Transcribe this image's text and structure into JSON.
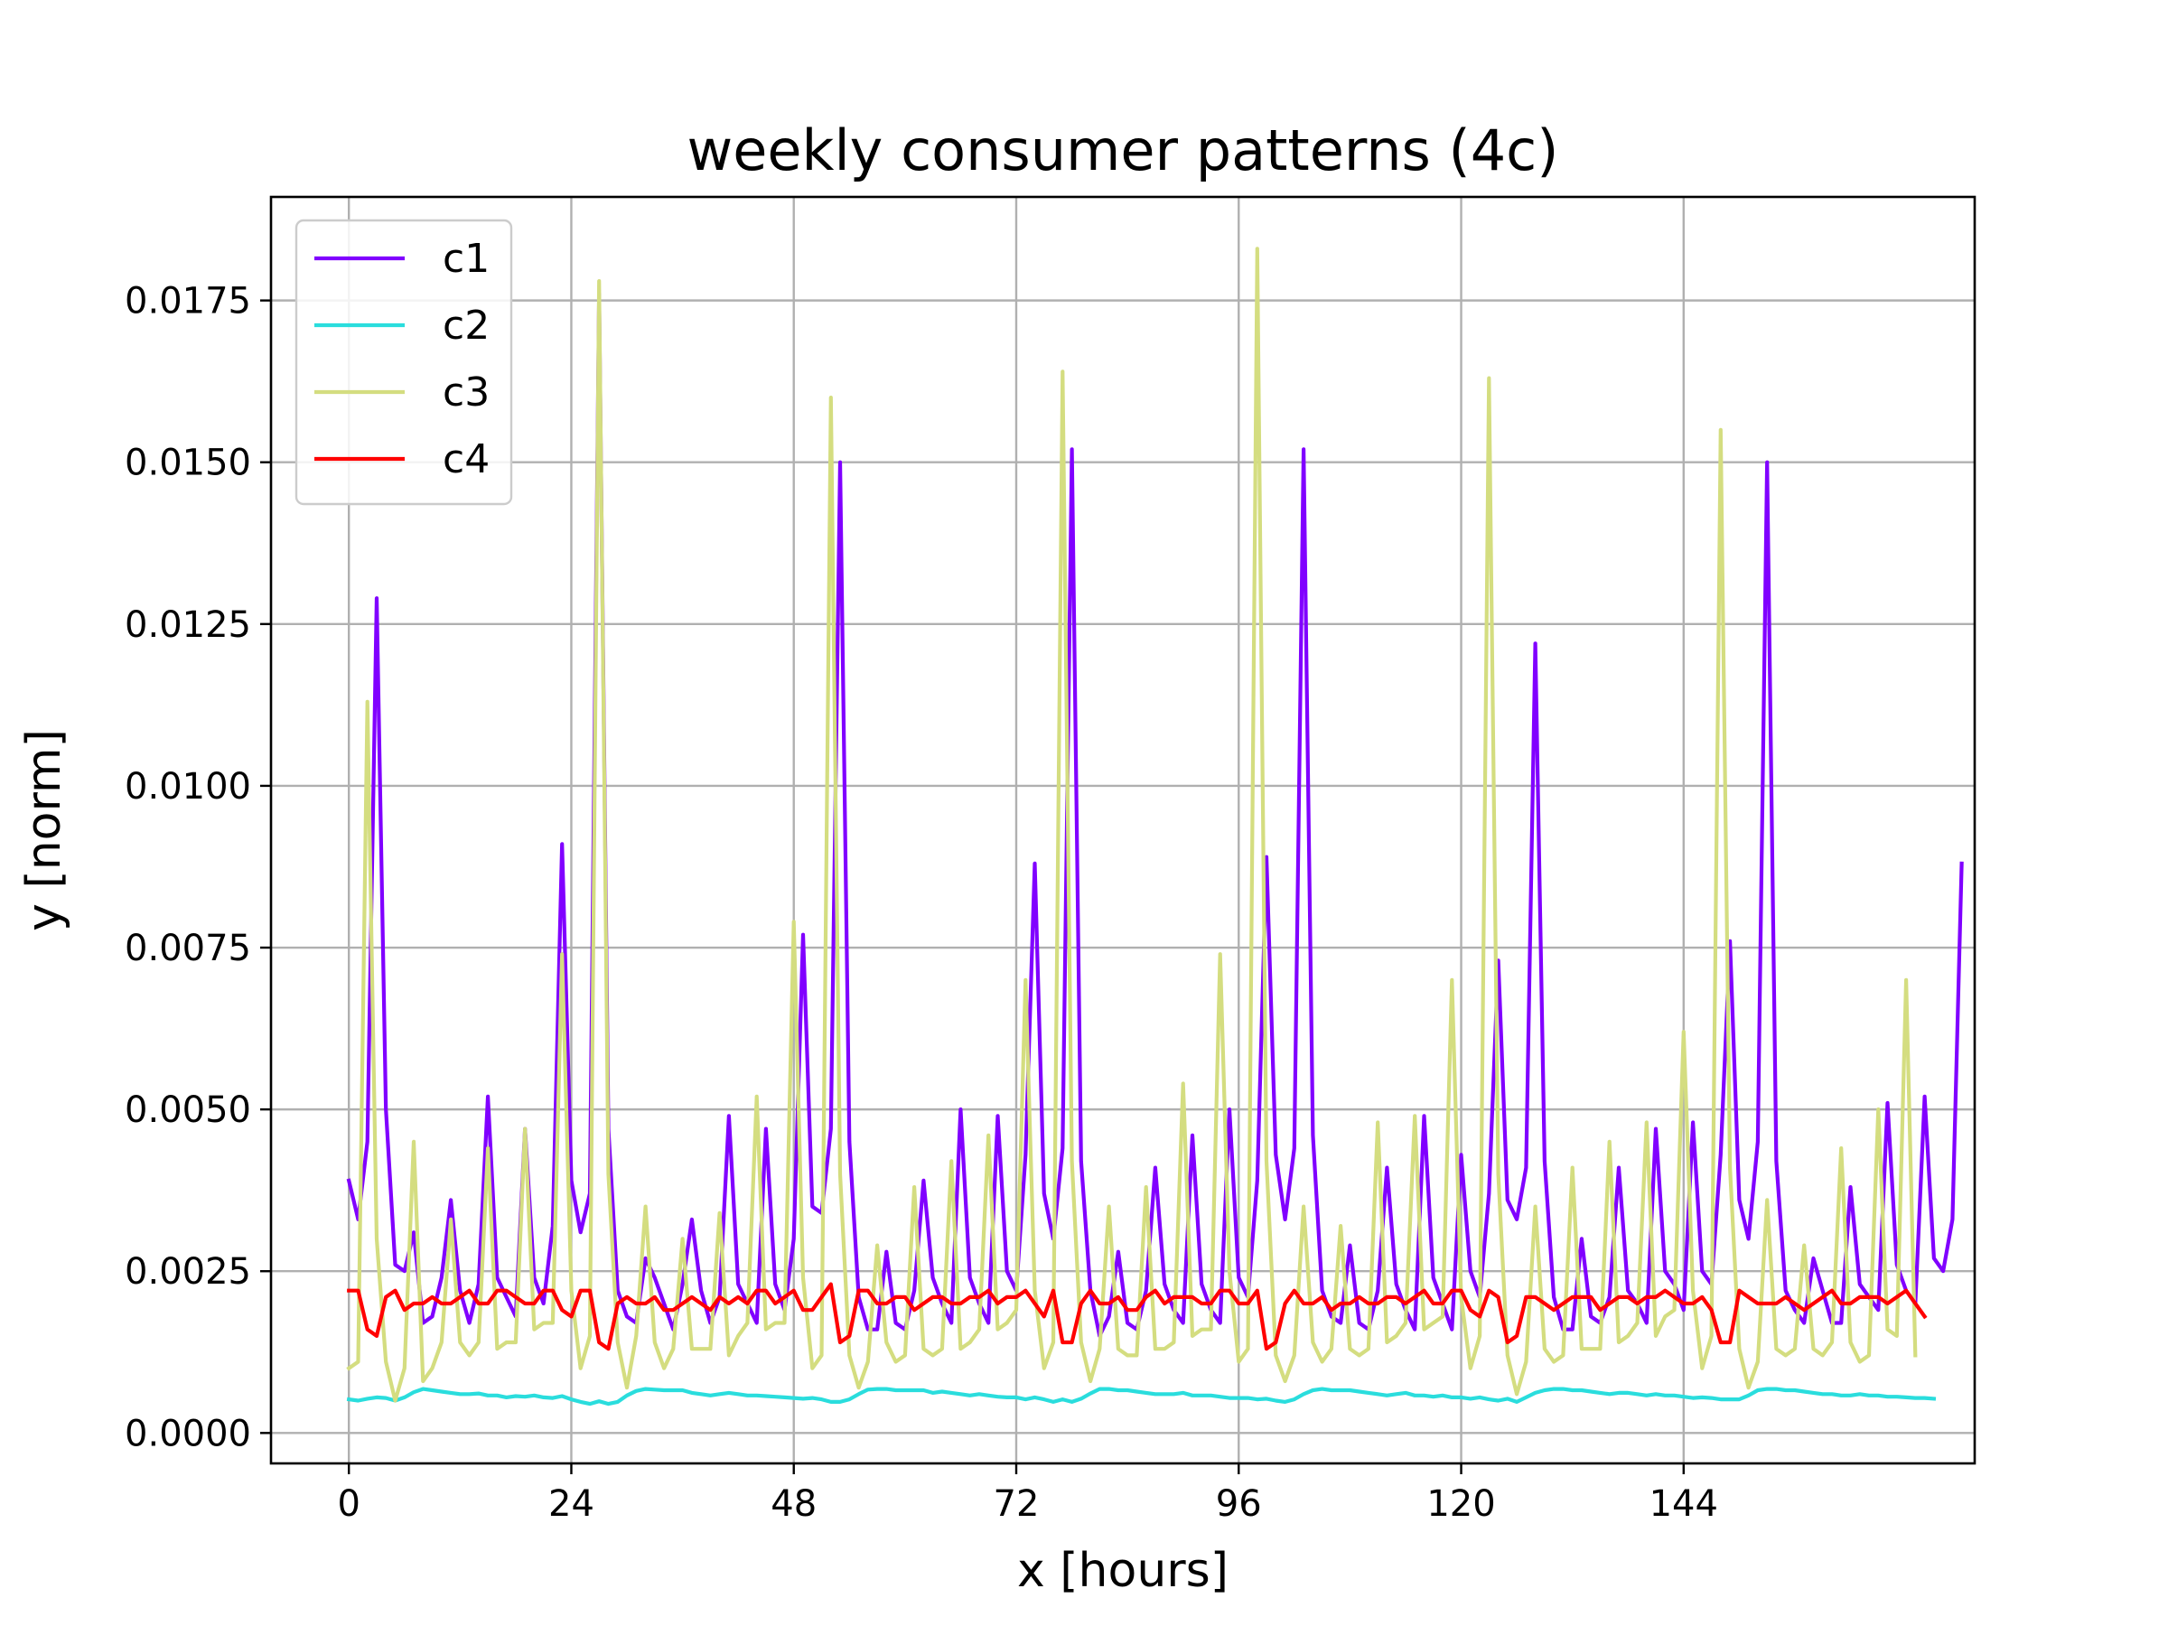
{
  "chart_data": {
    "type": "line",
    "title": "weekly consumer patterns (4c)",
    "xlabel": "x [hours]",
    "ylabel": "y [norm]",
    "xlim": [
      -8.4,
      175.4
    ],
    "ylim": [
      -0.00047,
      0.0191
    ],
    "x_ticks": [
      0,
      24,
      48,
      72,
      96,
      120,
      144
    ],
    "x_tick_labels": [
      "0",
      "24",
      "48",
      "72",
      "96",
      "120",
      "144"
    ],
    "y_ticks": [
      0.0,
      0.0025,
      0.005,
      0.0075,
      0.01,
      0.0125,
      0.015,
      0.0175
    ],
    "y_tick_labels": [
      "0.0000",
      "0.0025",
      "0.0050",
      "0.0075",
      "0.0100",
      "0.0125",
      "0.0150",
      "0.0175"
    ],
    "grid": true,
    "legend_position": "upper-left",
    "x_count": 168,
    "series": [
      {
        "name": "c1",
        "color": "#8000ff",
        "values": [
          0.0039,
          0.0033,
          0.0045,
          0.0129,
          0.005,
          0.0026,
          0.0025,
          0.0031,
          0.0017,
          0.0018,
          0.0024,
          0.0036,
          0.0022,
          0.0017,
          0.0023,
          0.0052,
          0.0024,
          0.0021,
          0.0018,
          0.0047,
          0.0024,
          0.002,
          0.0032,
          0.0091,
          0.0039,
          0.0031,
          0.0037,
          0.0176,
          0.0047,
          0.0022,
          0.0018,
          0.0017,
          0.0027,
          0.0024,
          0.002,
          0.0016,
          0.0023,
          0.0033,
          0.0022,
          0.0017,
          0.0021,
          0.0049,
          0.0023,
          0.002,
          0.0017,
          0.0047,
          0.0023,
          0.0019,
          0.003,
          0.0077,
          0.0035,
          0.0034,
          0.0047,
          0.015,
          0.0045,
          0.0021,
          0.0016,
          0.0016,
          0.0028,
          0.0017,
          0.0016,
          0.0022,
          0.0039,
          0.0024,
          0.002,
          0.0017,
          0.005,
          0.0024,
          0.002,
          0.0017,
          0.0049,
          0.0025,
          0.0022,
          0.0043,
          0.0088,
          0.0037,
          0.003,
          0.0044,
          0.0152,
          0.0042,
          0.0022,
          0.0015,
          0.0018,
          0.0028,
          0.0017,
          0.0016,
          0.0022,
          0.0041,
          0.0023,
          0.0019,
          0.0017,
          0.0046,
          0.0023,
          0.0019,
          0.0017,
          0.005,
          0.0024,
          0.0021,
          0.0039,
          0.0089,
          0.0043,
          0.0033,
          0.0044,
          0.0152,
          0.0046,
          0.0022,
          0.0018,
          0.0017,
          0.0029,
          0.0017,
          0.0016,
          0.0022,
          0.0041,
          0.0023,
          0.0019,
          0.0016,
          0.0049,
          0.0024,
          0.002,
          0.0016,
          0.0043,
          0.0025,
          0.0021,
          0.0037,
          0.0073,
          0.0036,
          0.0033,
          0.0041,
          0.0122,
          0.0042,
          0.0021,
          0.0016,
          0.0016,
          0.003,
          0.0018,
          0.0017,
          0.0021,
          0.0041,
          0.0022,
          0.002,
          0.0017,
          0.0047,
          0.0025,
          0.0023,
          0.0019,
          0.0048,
          0.0025,
          0.0023,
          0.0043,
          0.0076,
          0.0036,
          0.003,
          0.0045,
          0.015,
          0.0042,
          0.0022,
          0.0019,
          0.0017,
          0.0027,
          0.0022,
          0.0017,
          0.0017,
          0.0038,
          0.0023,
          0.0021,
          0.0019,
          0.0051,
          0.0026,
          0.0022,
          0.002,
          0.0052,
          0.0027,
          0.0025,
          0.0033,
          0.0088
        ]
      },
      {
        "name": "c2",
        "color": "#2adddd",
        "values": [
          0.00052,
          0.0005,
          0.00053,
          0.00055,
          0.00054,
          0.0005,
          0.00055,
          0.00063,
          0.00068,
          0.00066,
          0.00064,
          0.00062,
          0.0006,
          0.0006,
          0.00061,
          0.00058,
          0.00058,
          0.00055,
          0.00057,
          0.00056,
          0.00058,
          0.00055,
          0.00054,
          0.00057,
          0.00052,
          0.00048,
          0.00045,
          0.00049,
          0.00045,
          0.00048,
          0.00058,
          0.00065,
          0.00068,
          0.00067,
          0.00066,
          0.00066,
          0.00066,
          0.00062,
          0.0006,
          0.00058,
          0.0006,
          0.00062,
          0.0006,
          0.00058,
          0.00058,
          0.00057,
          0.00056,
          0.00055,
          0.00054,
          0.00053,
          0.00054,
          0.00052,
          0.00048,
          0.00048,
          0.00052,
          0.0006,
          0.00067,
          0.00068,
          0.00068,
          0.00066,
          0.00066,
          0.00066,
          0.00066,
          0.00062,
          0.00064,
          0.00062,
          0.0006,
          0.00058,
          0.0006,
          0.00058,
          0.00056,
          0.00055,
          0.00055,
          0.00052,
          0.00055,
          0.00052,
          0.00048,
          0.00052,
          0.00048,
          0.00053,
          0.00061,
          0.00068,
          0.00068,
          0.00066,
          0.00066,
          0.00064,
          0.00062,
          0.0006,
          0.0006,
          0.0006,
          0.00062,
          0.00058,
          0.00058,
          0.00058,
          0.00056,
          0.00054,
          0.00054,
          0.00054,
          0.00052,
          0.00053,
          0.0005,
          0.00048,
          0.00052,
          0.0006,
          0.00066,
          0.00068,
          0.00066,
          0.00066,
          0.00066,
          0.00064,
          0.00062,
          0.0006,
          0.00058,
          0.0006,
          0.00062,
          0.00058,
          0.00058,
          0.00056,
          0.00058,
          0.00055,
          0.00055,
          0.00053,
          0.00055,
          0.00052,
          0.0005,
          0.00053,
          0.00048,
          0.00055,
          0.00062,
          0.00066,
          0.00068,
          0.00068,
          0.00066,
          0.00066,
          0.00064,
          0.00062,
          0.0006,
          0.00062,
          0.00062,
          0.0006,
          0.00058,
          0.0006,
          0.00058,
          0.00058,
          0.00056,
          0.00054,
          0.00055,
          0.00054,
          0.00052,
          0.00052,
          0.00052,
          0.00058,
          0.00066,
          0.00068,
          0.00068,
          0.00066,
          0.00066,
          0.00064,
          0.00062,
          0.0006,
          0.0006,
          0.00058,
          0.00058,
          0.0006,
          0.00058,
          0.00058,
          0.00056,
          0.00056,
          0.00055,
          0.00054,
          0.00054,
          0.00053
        ]
      },
      {
        "name": "c3",
        "color": "#d4dd80",
        "values": [
          0.001,
          0.0011,
          0.0113,
          0.003,
          0.0011,
          0.0005,
          0.001,
          0.0045,
          0.0008,
          0.001,
          0.0014,
          0.0033,
          0.0014,
          0.0012,
          0.0014,
          0.0044,
          0.0013,
          0.0014,
          0.0014,
          0.0047,
          0.0016,
          0.0017,
          0.0017,
          0.0074,
          0.0022,
          0.001,
          0.0015,
          0.0178,
          0.004,
          0.0014,
          0.0007,
          0.0015,
          0.0035,
          0.0014,
          0.001,
          0.0013,
          0.003,
          0.0013,
          0.0013,
          0.0013,
          0.0034,
          0.0012,
          0.0015,
          0.0017,
          0.0052,
          0.0016,
          0.0017,
          0.0017,
          0.0079,
          0.0024,
          0.001,
          0.0012,
          0.016,
          0.004,
          0.0012,
          0.0007,
          0.0011,
          0.0029,
          0.0014,
          0.0011,
          0.0012,
          0.0038,
          0.0013,
          0.0012,
          0.0013,
          0.0042,
          0.0013,
          0.0014,
          0.0016,
          0.0046,
          0.0016,
          0.0017,
          0.0019,
          0.007,
          0.0022,
          0.001,
          0.0014,
          0.0164,
          0.0042,
          0.0014,
          0.0008,
          0.0013,
          0.0035,
          0.0013,
          0.0012,
          0.0012,
          0.0038,
          0.0013,
          0.0013,
          0.0014,
          0.0054,
          0.0015,
          0.0016,
          0.0016,
          0.0074,
          0.0025,
          0.0011,
          0.0013,
          0.0183,
          0.0042,
          0.0012,
          0.0008,
          0.0012,
          0.0035,
          0.0014,
          0.0011,
          0.0013,
          0.0032,
          0.0013,
          0.0012,
          0.0013,
          0.0048,
          0.0014,
          0.0015,
          0.0017,
          0.0049,
          0.0016,
          0.0017,
          0.0018,
          0.007,
          0.0021,
          0.001,
          0.0015,
          0.0163,
          0.004,
          0.0012,
          0.0006,
          0.0011,
          0.0035,
          0.0013,
          0.0011,
          0.0012,
          0.0041,
          0.0013,
          0.0013,
          0.0013,
          0.0045,
          0.0014,
          0.0015,
          0.0017,
          0.0048,
          0.0015,
          0.0018,
          0.0019,
          0.0062,
          0.0022,
          0.001,
          0.0015,
          0.0155,
          0.0041,
          0.0013,
          0.0007,
          0.0011,
          0.0036,
          0.0013,
          0.0012,
          0.0013,
          0.0029,
          0.0013,
          0.0012,
          0.0014,
          0.0044,
          0.0014,
          0.0011,
          0.0012,
          0.005,
          0.0016,
          0.0015,
          0.007,
          0.0012
        ]
      },
      {
        "name": "c4",
        "color": "#ff0000",
        "values": [
          0.0022,
          0.0022,
          0.0016,
          0.0015,
          0.0021,
          0.0022,
          0.0019,
          0.002,
          0.002,
          0.0021,
          0.002,
          0.002,
          0.0021,
          0.0022,
          0.002,
          0.002,
          0.0022,
          0.0022,
          0.0021,
          0.002,
          0.002,
          0.0022,
          0.0022,
          0.0019,
          0.0018,
          0.0022,
          0.0022,
          0.0014,
          0.0013,
          0.002,
          0.0021,
          0.002,
          0.002,
          0.0021,
          0.0019,
          0.0019,
          0.002,
          0.0021,
          0.002,
          0.0019,
          0.0021,
          0.002,
          0.0021,
          0.002,
          0.0022,
          0.0022,
          0.002,
          0.0021,
          0.0022,
          0.0019,
          0.0019,
          0.0021,
          0.0023,
          0.0014,
          0.0015,
          0.0022,
          0.0022,
          0.002,
          0.002,
          0.0021,
          0.0021,
          0.0019,
          0.002,
          0.0021,
          0.0021,
          0.002,
          0.002,
          0.0021,
          0.0021,
          0.0022,
          0.002,
          0.0021,
          0.0021,
          0.0022,
          0.002,
          0.0018,
          0.0022,
          0.0014,
          0.0014,
          0.002,
          0.0022,
          0.002,
          0.002,
          0.0021,
          0.0019,
          0.0019,
          0.0021,
          0.0022,
          0.002,
          0.0021,
          0.0021,
          0.0021,
          0.002,
          0.002,
          0.0022,
          0.0022,
          0.002,
          0.002,
          0.0022,
          0.0013,
          0.0014,
          0.002,
          0.0022,
          0.002,
          0.002,
          0.0021,
          0.0019,
          0.002,
          0.002,
          0.0021,
          0.002,
          0.002,
          0.0021,
          0.0021,
          0.002,
          0.0021,
          0.0022,
          0.002,
          0.002,
          0.0022,
          0.0022,
          0.0019,
          0.0018,
          0.0022,
          0.0021,
          0.0014,
          0.0015,
          0.0021,
          0.0021,
          0.002,
          0.0019,
          0.002,
          0.0021,
          0.0021,
          0.0021,
          0.0019,
          0.002,
          0.0021,
          0.0021,
          0.002,
          0.0021,
          0.0021,
          0.0022,
          0.0021,
          0.002,
          0.002,
          0.0021,
          0.0019,
          0.0014,
          0.0014,
          0.0022,
          0.0021,
          0.002,
          0.002,
          0.002,
          0.0021,
          0.002,
          0.0019,
          0.002,
          0.0021,
          0.0022,
          0.002,
          0.002,
          0.0021,
          0.0021,
          0.0021,
          0.002,
          0.0021,
          0.0022,
          0.002,
          0.0018
        ]
      }
    ]
  }
}
